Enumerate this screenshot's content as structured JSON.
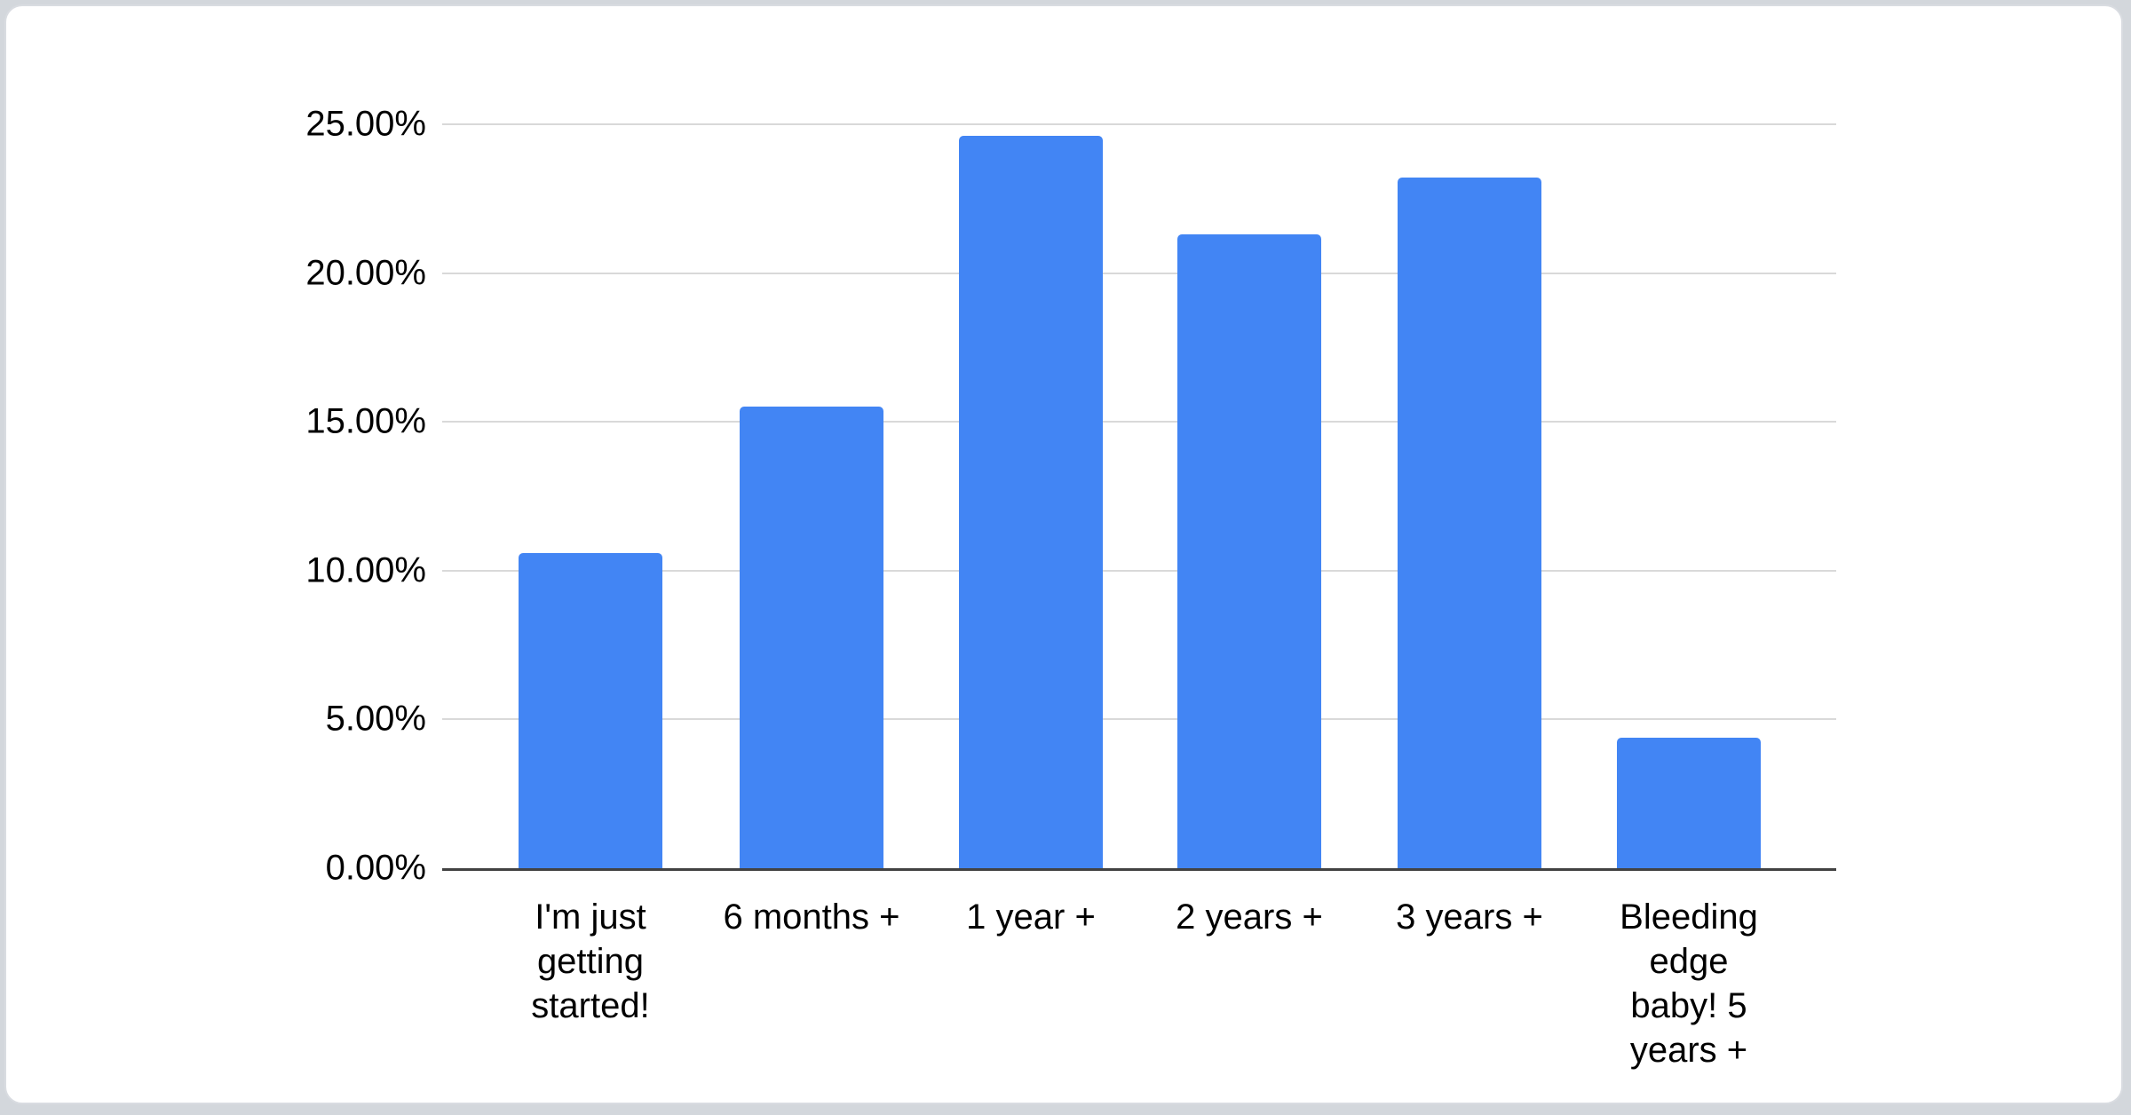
{
  "page": {
    "background_color": "#d3d7dc",
    "card_background": "#ffffff",
    "card_border_color": "#d9dce1"
  },
  "chart_data": {
    "type": "bar",
    "title": "",
    "xlabel": "",
    "ylabel": "",
    "categories": [
      "I'm just getting started!",
      "6 months +",
      "1 year +",
      "2 years +",
      "3 years +",
      "Bleeding edge baby! 5 years +"
    ],
    "values": [
      10.6,
      15.5,
      24.6,
      21.3,
      23.2,
      4.4
    ],
    "unit": "%",
    "ylim": [
      0,
      25
    ],
    "y_tick_labels": [
      "0.00%",
      "5.00%",
      "10.00%",
      "15.00%",
      "20.00%",
      "25.00%"
    ],
    "grid": true,
    "legend_position": "none",
    "bar_color": "#4285f4",
    "gridline_color": "#d9d9d9",
    "axis_line_color": "#424242",
    "label_color": "#000000"
  }
}
